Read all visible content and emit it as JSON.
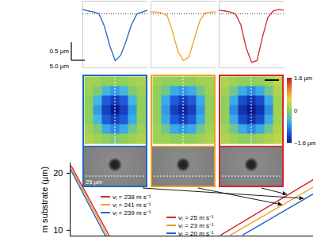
{
  "chart_data": [
    {
      "type": "line",
      "x": [
        0,
        2,
        4,
        6,
        8,
        10,
        12,
        14,
        16,
        18,
        20,
        22,
        24
      ],
      "xlim": [
        0,
        24
      ],
      "ylim": [
        -1.5,
        0.35
      ],
      "tick_labels": false,
      "baseline": {
        "value": 0,
        "line_style": "dotted"
      },
      "scale_bar_y": {
        "value": 0.5,
        "label": "0.5 µm"
      },
      "scale_bar_x": {
        "value": 5.0,
        "label": "5.0 µm"
      },
      "series": [
        {
          "color": "#2166c4",
          "values": [
            0.12,
            0.08,
            0.05,
            0.0,
            -0.35,
            -0.9,
            -1.3,
            -1.15,
            -0.75,
            -0.3,
            0.0,
            0.05,
            0.1
          ]
        },
        {
          "color": "#f0a020",
          "values": [
            0.05,
            0.05,
            0.02,
            -0.05,
            -0.5,
            -1.05,
            -1.3,
            -1.2,
            -0.7,
            -0.2,
            0.02,
            0.05,
            0.05
          ]
        },
        {
          "color": "#d7262b",
          "values": [
            0.1,
            0.08,
            0.05,
            0.0,
            -0.3,
            -0.95,
            -1.35,
            -1.3,
            -0.65,
            -0.1,
            0.08,
            0.12,
            0.1
          ]
        }
      ]
    },
    {
      "type": "heatmap",
      "sem_label": "25 µm",
      "colorbar": {
        "range": [
          -1.6,
          1.6
        ],
        "ticks": [
          {
            "value": 1.6,
            "label": "1.6 µm"
          },
          {
            "value": 0,
            "label": "0"
          },
          {
            "value": -1.6,
            "label": "−1.6 µm"
          }
        ],
        "colors": [
          "#0b1a8c",
          "#1e5fe0",
          "#3fb5e8",
          "#8fcf5a",
          "#e3d93a",
          "#f07b2a",
          "#c0181a"
        ]
      },
      "maps": [
        {
          "color": "#2166c4",
          "cells": [
            [
              0.1,
              0.1,
              0.0,
              0.0,
              0.0,
              0.1,
              0.2
            ],
            [
              0.1,
              -0.1,
              -0.5,
              -0.7,
              -0.5,
              -0.1,
              0.1
            ],
            [
              0.0,
              -0.5,
              -1.1,
              -1.3,
              -1.1,
              -0.5,
              0.0
            ],
            [
              0.0,
              -0.7,
              -1.3,
              -1.6,
              -1.3,
              -0.7,
              0.0
            ],
            [
              0.0,
              -0.5,
              -1.1,
              -1.3,
              -1.1,
              -0.6,
              0.0
            ],
            [
              0.1,
              -0.1,
              -0.6,
              -0.8,
              -0.6,
              -0.2,
              0.1
            ],
            [
              0.2,
              0.1,
              0.0,
              -0.1,
              0.0,
              0.1,
              0.2
            ]
          ]
        },
        {
          "color": "#f0a020",
          "cells": [
            [
              0.1,
              0.0,
              0.0,
              0.0,
              0.0,
              0.1,
              0.1
            ],
            [
              0.0,
              -0.2,
              -0.6,
              -0.7,
              -0.6,
              -0.2,
              0.1
            ],
            [
              0.0,
              -0.6,
              -1.1,
              -1.3,
              -1.1,
              -0.6,
              0.0
            ],
            [
              0.0,
              -0.7,
              -1.3,
              -1.5,
              -1.3,
              -0.7,
              0.0
            ],
            [
              0.0,
              -0.6,
              -1.1,
              -1.3,
              -1.1,
              -0.6,
              0.0
            ],
            [
              0.1,
              -0.2,
              -0.6,
              -0.7,
              -0.6,
              -0.2,
              0.1
            ],
            [
              0.1,
              0.1,
              0.0,
              0.0,
              0.0,
              0.1,
              0.2
            ]
          ]
        },
        {
          "color": "#d7262b",
          "cells": [
            [
              0.2,
              0.1,
              0.0,
              0.0,
              0.0,
              0.1,
              0.3
            ],
            [
              0.1,
              -0.2,
              -0.6,
              -0.8,
              -0.6,
              -0.2,
              0.2
            ],
            [
              0.0,
              -0.6,
              -1.2,
              -1.4,
              -1.2,
              -0.6,
              0.1
            ],
            [
              0.0,
              -0.8,
              -1.4,
              -1.6,
              -1.4,
              -0.8,
              0.1
            ],
            [
              0.0,
              -0.6,
              -1.2,
              -1.4,
              -1.2,
              -0.6,
              0.1
            ],
            [
              0.1,
              -0.2,
              -0.6,
              -0.8,
              -0.6,
              -0.2,
              0.2
            ],
            [
              0.2,
              0.1,
              0.0,
              0.0,
              0.1,
              0.2,
              0.3
            ]
          ]
        }
      ]
    },
    {
      "type": "line",
      "y_label": "m substrate (µm)",
      "xlim": [
        0,
        100
      ],
      "ylim": [
        9,
        21.8
      ],
      "yticks": [
        10,
        20
      ],
      "tick_labels": "y",
      "series": [
        {
          "name": "vᵢ = 238 m s⁻¹",
          "color": "#d7262b",
          "legend": "upper left",
          "x": [
            0.5,
            16
          ],
          "values": [
            21.25,
            9.1
          ]
        },
        {
          "name": "vᵢ = 241 m s⁻¹",
          "color": "#f0a020",
          "legend": "upper left",
          "x": [
            0.3,
            15.2
          ],
          "values": [
            21.0,
            9.1
          ]
        },
        {
          "name": "vᵢ = 239 m s⁻¹",
          "color": "#2166c4",
          "legend": "upper left",
          "x": [
            0.1,
            14.4
          ],
          "values": [
            20.7,
            9.1
          ]
        },
        {
          "name": "vᵣ = 25 m s⁻¹",
          "color": "#d7262b",
          "legend": "lower center",
          "x": [
            62,
            100
          ],
          "values": [
            9.2,
            18.9
          ]
        },
        {
          "name": "vᵣ = 23 m s⁻¹",
          "color": "#f0a020",
          "legend": "lower center",
          "x": [
            66,
            100
          ],
          "values": [
            9.2,
            17.6
          ]
        },
        {
          "name": "vᵣ = 20 m s⁻¹",
          "color": "#2166c4",
          "legend": "lower center",
          "x": [
            71,
            100
          ],
          "values": [
            9.2,
            16.4
          ]
        }
      ]
    }
  ]
}
